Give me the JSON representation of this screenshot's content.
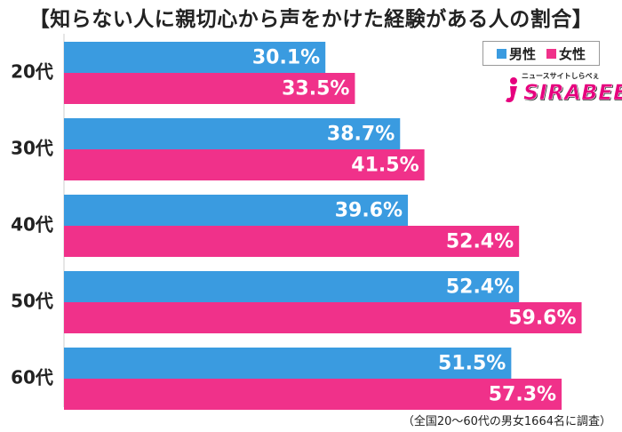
{
  "chart_data": {
    "type": "bar",
    "orientation": "horizontal",
    "title": "【知らない人に親切心から声をかけた経験がある人の割合】",
    "categories": [
      "20代",
      "30代",
      "40代",
      "50代",
      "60代"
    ],
    "series": [
      {
        "name": "男性",
        "color": "#3a9be0",
        "values": [
          30.1,
          38.7,
          39.6,
          52.4,
          51.5
        ]
      },
      {
        "name": "女性",
        "color": "#f0318a",
        "values": [
          33.5,
          41.5,
          52.4,
          59.6,
          57.3
        ]
      }
    ],
    "value_suffix": "%",
    "xlim": [
      0,
      62
    ],
    "grid": false,
    "legend_position": "top-right",
    "footnote": "（全国20～60代の男女1664名に調査）"
  },
  "logo": {
    "tagline": "ニュースサイトしらべぇ",
    "name": "SIRABEE",
    "color": "#e6007e"
  }
}
